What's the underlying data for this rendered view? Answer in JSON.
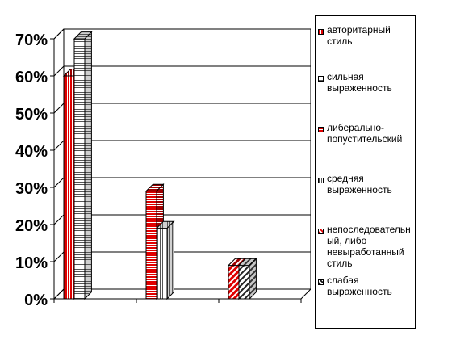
{
  "chart_data": {
    "type": "bar",
    "style": "3d-clustered-column",
    "categories": [
      "",
      "",
      ""
    ],
    "series": [
      {
        "name": "авторитарный стиль",
        "values": [
          60,
          null,
          null
        ],
        "color": "#e00000",
        "pattern": "vertical-stripes"
      },
      {
        "name": "сильная выраженность",
        "values": [
          70,
          null,
          null
        ],
        "color": "#ffffff",
        "pattern": "horizontal-stripes"
      },
      {
        "name": "либерально-попустительский",
        "values": [
          null,
          29,
          null
        ],
        "color": "#e00000",
        "pattern": "horizontal-stripes"
      },
      {
        "name": "средняя выраженность",
        "values": [
          null,
          19,
          null
        ],
        "color": "#ffffff",
        "pattern": "vertical-stripes"
      },
      {
        "name": "непоследовательный, либо невыработанный стиль",
        "values": [
          null,
          null,
          9
        ],
        "color": "#e00000",
        "pattern": "diagonal-stripes"
      },
      {
        "name": "слабая выраженность",
        "values": [
          null,
          null,
          9
        ],
        "color": "#ffffff",
        "pattern": "diagonal-stripes"
      }
    ],
    "yticks": [
      "0%",
      "10%",
      "20%",
      "30%",
      "40%",
      "50%",
      "60%",
      "70%"
    ],
    "ylim": [
      0,
      70
    ],
    "title": "",
    "xlabel": "",
    "ylabel": "",
    "grid": true,
    "legend_position": "right"
  },
  "legend": {
    "entries": [
      "авторитарный\nстиль",
      "сильная\nвыраженность",
      "либерально-\nпопустительский",
      "средняя\nвыраженность",
      "непоследовательн\nый, либо\nневыработанный\nстиль",
      "слабая\nвыраженность"
    ]
  }
}
